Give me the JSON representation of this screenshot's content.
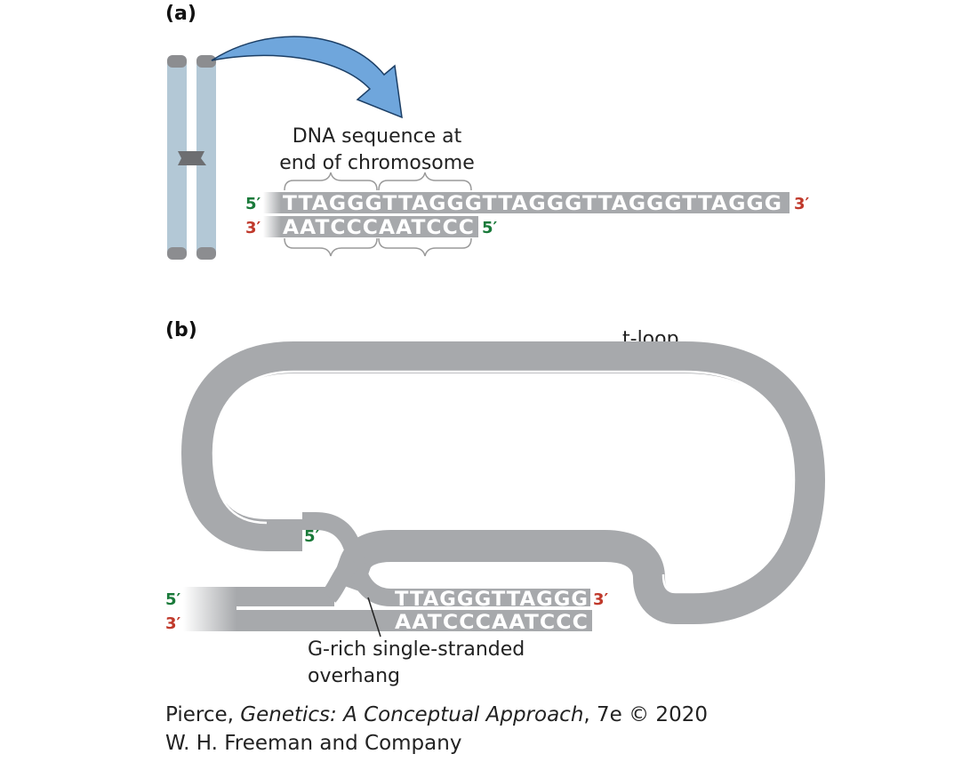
{
  "panel_a": {
    "label": "(a)",
    "caption_line1": "DNA sequence at",
    "caption_line2": "end of chromosome",
    "top_strand": {
      "sequence": "TTAGGGTTAGGGTTAGGGTTAGGGTTAGGG",
      "end_left": "5′",
      "end_right": "3′"
    },
    "bottom_strand": {
      "sequence": "AATCCCAATCCC",
      "end_left": "3′",
      "end_right": "5′"
    }
  },
  "panel_b": {
    "label": "(b)",
    "loop_label": "t-loop",
    "inner_end": "5′",
    "top_strand": {
      "end_left": "5′",
      "sequence": "TTAGGGTTAGGG",
      "end_right": "3′"
    },
    "bottom_strand": {
      "end_left": "3′",
      "sequence": "AATCCCAATCCC"
    },
    "overhang_line1": "G-rich single-stranded",
    "overhang_line2": "overhang"
  },
  "credit": {
    "author": "Pierce, ",
    "title": "Genetics: A Conceptual Approach",
    "edition": ", 7e © 2020",
    "publisher": "W. H. Freeman and Company"
  },
  "colors": {
    "strand_gray": "#a7a9ac",
    "chromosome_blue": "#b3c8d6",
    "arrow_blue": "#6fa6dc",
    "five_prime_green": "#1a7a3a",
    "three_prime_red": "#c0392b"
  }
}
